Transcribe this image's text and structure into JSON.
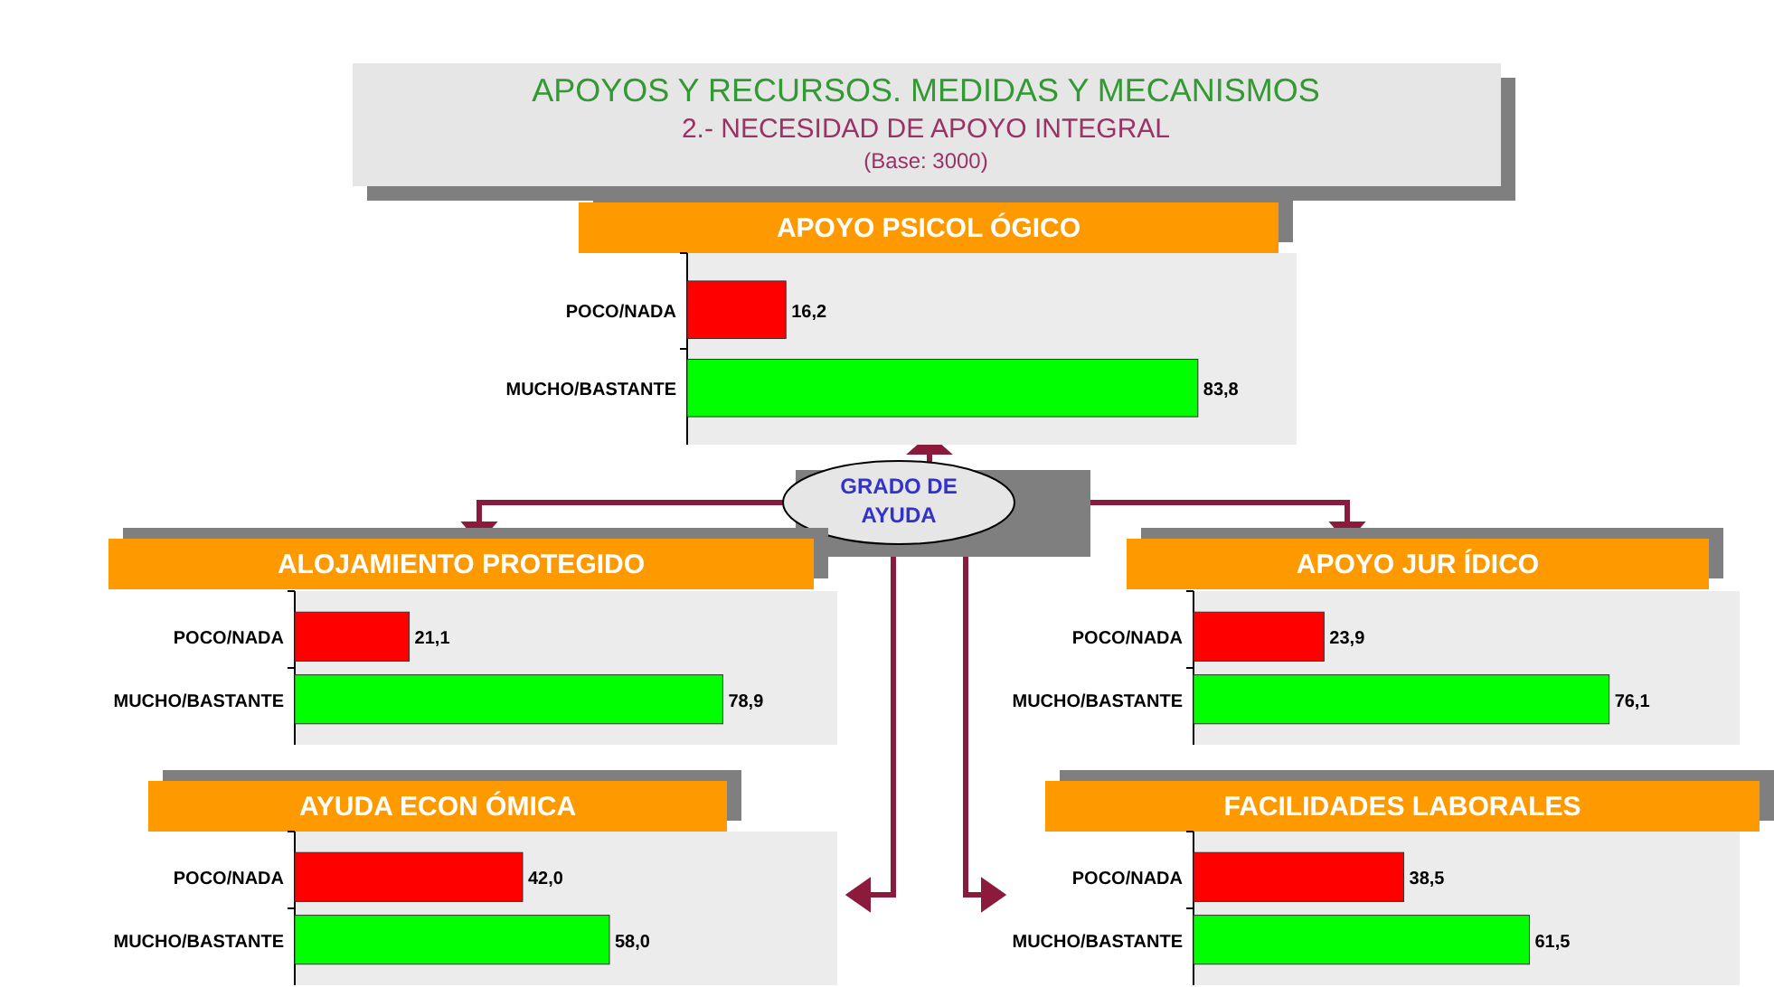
{
  "chart_data": [
    {
      "type": "other",
      "title": "APOYOS Y RECURSOS.  MEDIDAS Y MECANISMOS",
      "subtitle": "2.- NECESIDAD DE APOYO INTEGRAL",
      "annotations": [
        "(Base: 3000)",
        "GRADO DE AYUDA"
      ]
    },
    {
      "type": "bar",
      "orientation": "horizontal",
      "title": "APOYO PSICOL ÓGICO",
      "categories": [
        "POCO/NADA",
        "MUCHO/BASTANTE"
      ],
      "values": [
        16.2,
        83.8
      ],
      "colors": [
        "#ff0000",
        "#00ff00"
      ],
      "value_labels": [
        "16,2",
        "83,8"
      ],
      "xlim": [
        0,
        100
      ],
      "tick_labels": "y"
    },
    {
      "type": "bar",
      "orientation": "horizontal",
      "title": "ALOJAMIENTO PROTEGIDO",
      "categories": [
        "POCO/NADA",
        "MUCHO/BASTANTE"
      ],
      "values": [
        21.1,
        78.9
      ],
      "colors": [
        "#ff0000",
        "#00ff00"
      ],
      "value_labels": [
        "21,1",
        "78,9"
      ],
      "xlim": [
        0,
        100
      ],
      "tick_labels": "y"
    },
    {
      "type": "bar",
      "orientation": "horizontal",
      "title": "APOYO JUR ÍDICO",
      "categories": [
        "POCO/NADA",
        "MUCHO/BASTANTE"
      ],
      "values": [
        23.9,
        76.1
      ],
      "colors": [
        "#ff0000",
        "#00ff00"
      ],
      "value_labels": [
        "23,9",
        "76,1"
      ],
      "xlim": [
        0,
        100
      ],
      "tick_labels": "y"
    },
    {
      "type": "bar",
      "orientation": "horizontal",
      "title": "AYUDA ECON ÓMICA",
      "categories": [
        "POCO/NADA",
        "MUCHO/BASTANTE"
      ],
      "values": [
        42.0,
        58.0
      ],
      "colors": [
        "#ff0000",
        "#00ff00"
      ],
      "value_labels": [
        "42,0",
        "58,0"
      ],
      "xlim": [
        0,
        100
      ],
      "tick_labels": "y"
    },
    {
      "type": "bar",
      "orientation": "horizontal",
      "title": "FACILIDADES LABORALES",
      "categories": [
        "POCO/NADA",
        "MUCHO/BASTANTE"
      ],
      "values": [
        38.5,
        61.5
      ],
      "colors": [
        "#ff0000",
        "#00ff00"
      ],
      "value_labels": [
        "38,5",
        "61,5"
      ],
      "xlim": [
        0,
        100
      ],
      "tick_labels": "y"
    }
  ]
}
